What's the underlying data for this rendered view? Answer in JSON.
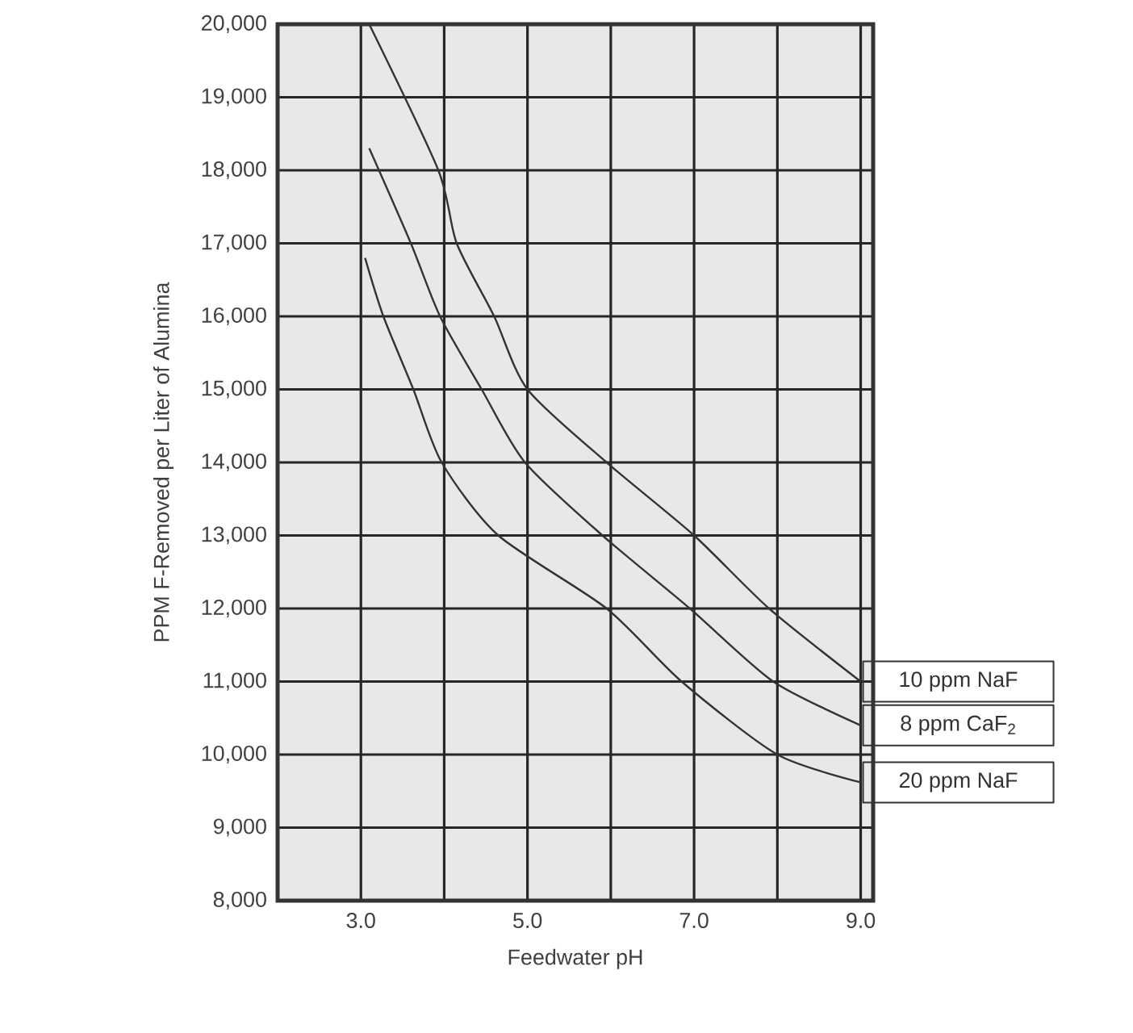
{
  "chart_data": {
    "type": "line",
    "xlabel": "Feedwater pH",
    "ylabel": "PPM F-Removed per Liter of Alumina",
    "xlim": [
      2.0,
      9.15
    ],
    "ylim": [
      8000,
      20000
    ],
    "xticks": [
      {
        "value": 3,
        "label": "3.0"
      },
      {
        "value": 4,
        "label": null
      },
      {
        "value": 5,
        "label": "5.0"
      },
      {
        "value": 6,
        "label": null
      },
      {
        "value": 7,
        "label": "7.0"
      },
      {
        "value": 8,
        "label": null
      },
      {
        "value": 9,
        "label": "9.0"
      }
    ],
    "yticks": [
      {
        "value": 8000,
        "label": "8,000"
      },
      {
        "value": 9000,
        "label": "9,000"
      },
      {
        "value": 10000,
        "label": "10,000"
      },
      {
        "value": 11000,
        "label": "11,000"
      },
      {
        "value": 12000,
        "label": "12,000"
      },
      {
        "value": 13000,
        "label": "13,000"
      },
      {
        "value": 14000,
        "label": "14,000"
      },
      {
        "value": 15000,
        "label": "15,000"
      },
      {
        "value": 16000,
        "label": "16,000"
      },
      {
        "value": 17000,
        "label": "17,000"
      },
      {
        "value": 18000,
        "label": "18,000"
      },
      {
        "value": 19000,
        "label": "19,000"
      },
      {
        "value": 20000,
        "label": "20,000"
      }
    ],
    "grid": true,
    "marker": "none",
    "line_style": "solid",
    "series": [
      {
        "name": "10 ppm NaF",
        "color": "#333333",
        "x": [
          3.1,
          3.93,
          4.15,
          4.6,
          5.0,
          5.95,
          7.0,
          7.9,
          9.0
        ],
        "values": [
          20000,
          18000,
          17000,
          16000,
          15000,
          14000,
          13000,
          12000,
          11000
        ]
      },
      {
        "name": "8 ppm CaF$_{2}$",
        "color": "#333333",
        "x": [
          3.1,
          3.6,
          3.95,
          4.45,
          4.97,
          5.9,
          6.95,
          7.95,
          9.0
        ],
        "values": [
          18300,
          17000,
          16000,
          15000,
          14000,
          13000,
          12000,
          11000,
          10400
        ]
      },
      {
        "name": "20 ppm NaF",
        "color": "#333333",
        "x": [
          3.05,
          3.27,
          3.63,
          3.97,
          4.65,
          5.95,
          6.85,
          8.0,
          9.0
        ],
        "values": [
          16800,
          16000,
          15000,
          14000,
          13000,
          12000,
          11000,
          10000,
          9620
        ]
      }
    ]
  }
}
